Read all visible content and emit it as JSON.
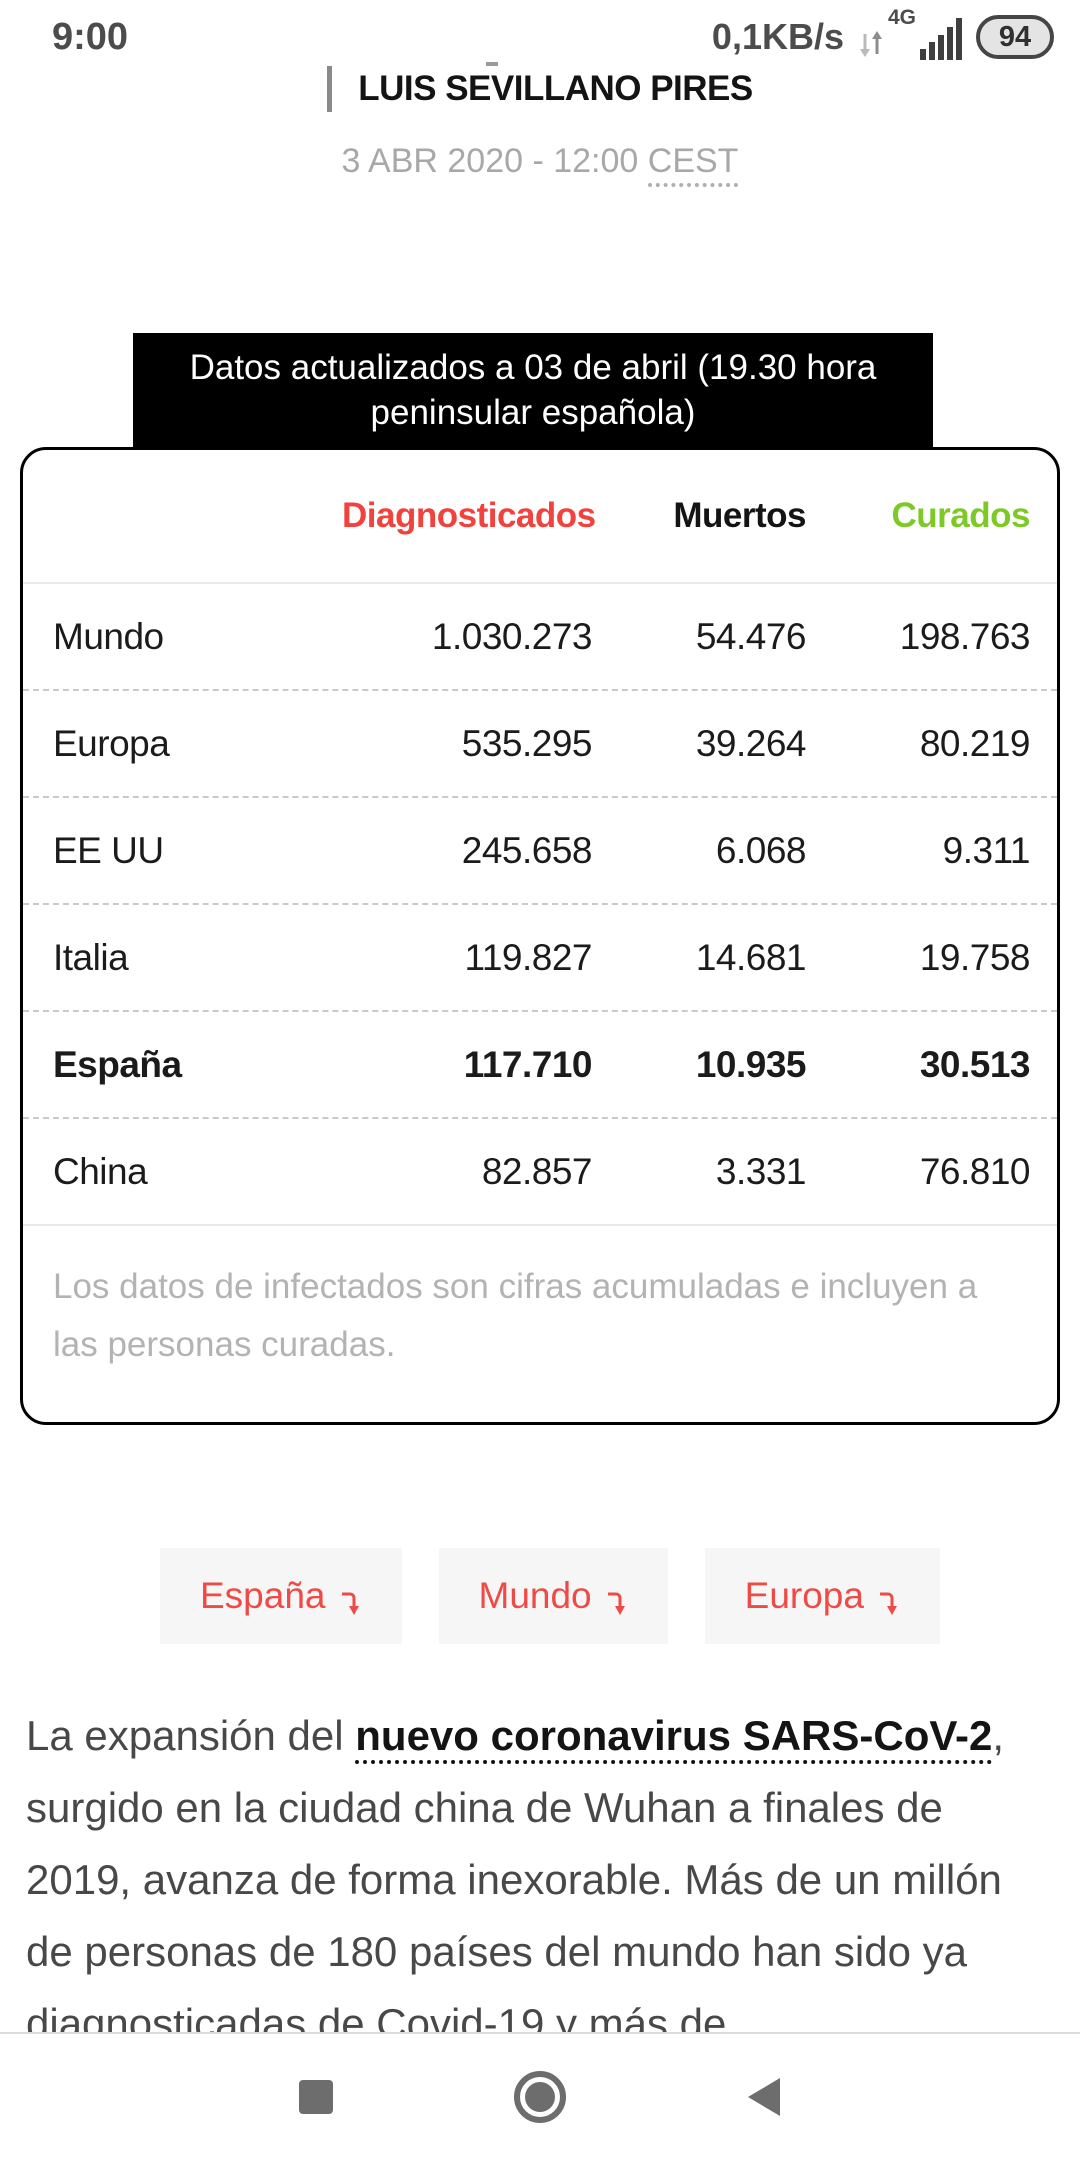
{
  "status_bar": {
    "time": "9:00",
    "network_speed": "0,1KB/s",
    "network_type": "4G",
    "battery_level": "94"
  },
  "article": {
    "byline": "LUIS SEVILLANO PIRES",
    "date_main": "3 ABR 2020 - 12:00 ",
    "date_tz": "CEST",
    "banner": "Datos actualizados a 03 de abril (19.30 hora peninsular española)"
  },
  "colors": {
    "diagnosticados_red": "#f2423e",
    "muertos_black": "#141414",
    "curados_green": "#7dc926",
    "button_red": "#ee4b46"
  },
  "table": {
    "columns": [
      "Diagnosticados",
      "Muertos",
      "Curados"
    ],
    "rows": [
      {
        "region": "Mundo",
        "diagnosticados": "1.030.273",
        "muertos": "54.476",
        "curados": "198.763",
        "bold": false
      },
      {
        "region": "Europa",
        "diagnosticados": "535.295",
        "muertos": "39.264",
        "curados": "80.219",
        "bold": false
      },
      {
        "region": "EE UU",
        "diagnosticados": "245.658",
        "muertos": "6.068",
        "curados": "9.311",
        "bold": false
      },
      {
        "region": "Italia",
        "diagnosticados": "119.827",
        "muertos": "14.681",
        "curados": "19.758",
        "bold": false
      },
      {
        "region": "España",
        "diagnosticados": "117.710",
        "muertos": "10.935",
        "curados": "30.513",
        "bold": true
      },
      {
        "region": "China",
        "diagnosticados": "82.857",
        "muertos": "3.331",
        "curados": "76.810",
        "bold": false
      }
    ],
    "note": "Los datos de infectados son cifras acumuladas e incluyen a las personas curadas."
  },
  "chart_data": {
    "type": "table",
    "title": "Datos actualizados a 03 de abril (19.30 hora peninsular española)",
    "categories": [
      "Mundo",
      "Europa",
      "EE UU",
      "Italia",
      "España",
      "China"
    ],
    "series": [
      {
        "name": "Diagnosticados",
        "values": [
          1030273,
          535295,
          245658,
          119827,
          117710,
          82857
        ]
      },
      {
        "name": "Muertos",
        "values": [
          54476,
          39264,
          6068,
          14681,
          10935,
          3331
        ]
      },
      {
        "name": "Curados",
        "values": [
          198763,
          80219,
          9311,
          19758,
          30513,
          76810
        ]
      }
    ]
  },
  "filter_buttons": [
    {
      "label": "España"
    },
    {
      "label": "Mundo"
    },
    {
      "label": "Europa"
    }
  ],
  "paragraph": {
    "before_link": "La expansión del ",
    "link": "nuevo coronavirus SARS-CoV-2",
    "after_link": ", surgido en la ciudad china de Wuhan a finales de 2019, avanza de forma inexorable. Más de un millón de personas de 180 países del mundo han sido ya diagnosticadas de Covid-19 y más de"
  }
}
